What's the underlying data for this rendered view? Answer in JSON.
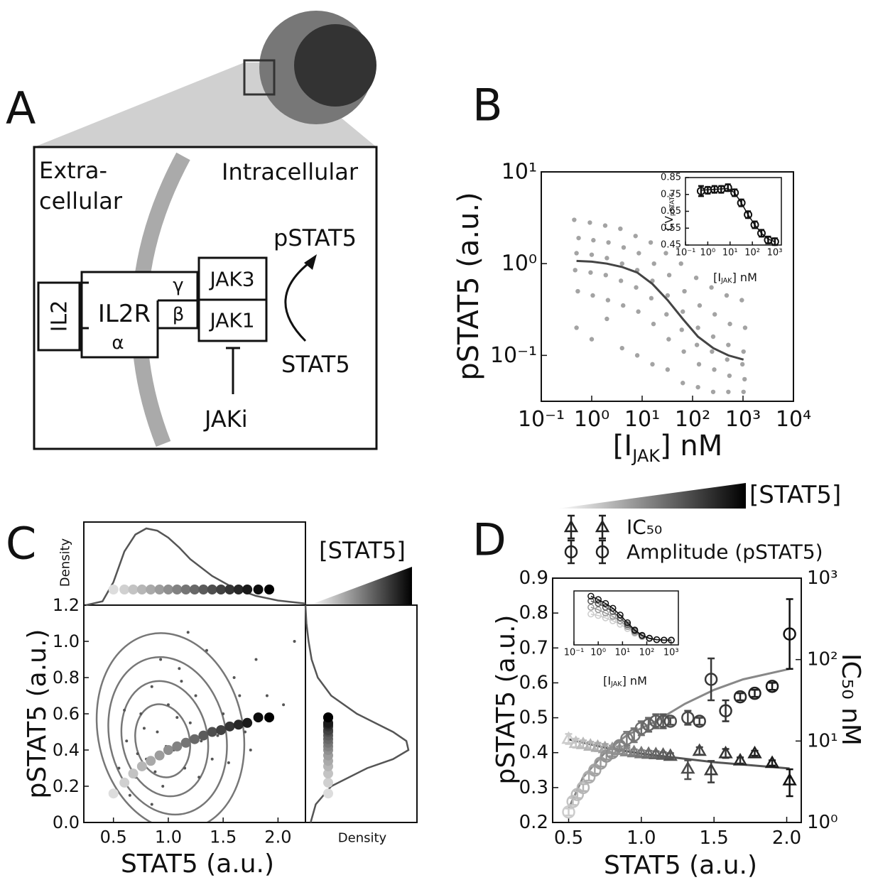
{
  "panel_labels": [
    "A",
    "B",
    "C",
    "D"
  ],
  "diagram": {
    "extracellular": [
      "Extra-",
      "cellular"
    ],
    "intracellular": "Intracellular",
    "il2": "IL2",
    "il2r": "IL2R",
    "gamma": "γ",
    "beta": "β",
    "alpha": "α",
    "jak3": "JAK3",
    "jak1": "JAK1",
    "pstat5": "pSTAT5",
    "stat5": "STAT5",
    "jaki": "JAKi"
  },
  "chart_data": [
    {
      "type": "scatter",
      "xscale": "log",
      "yscale": "log",
      "x_label": {
        "text": "[I",
        "sub": "JAK",
        "tail": "] nM"
      },
      "y_label": {
        "text": "pSTAT5 (a.u.)"
      },
      "xlim": [
        0.1,
        10000
      ],
      "ylim": [
        0.0316,
        10
      ],
      "xticks": [
        {
          "value": 0.1,
          "label": "10⁻¹"
        },
        {
          "value": 1,
          "label": "10⁰"
        },
        {
          "value": 10,
          "label": "10¹"
        },
        {
          "value": 100,
          "label": "10²"
        },
        {
          "value": 1000,
          "label": "10³"
        },
        {
          "value": 10000,
          "label": "10⁴"
        }
      ],
      "yticks": [
        {
          "value": 0.1,
          "label": "10⁻¹"
        },
        {
          "value": 1,
          "label": "10⁰"
        },
        {
          "value": 10,
          "label": "10¹"
        }
      ],
      "points": {
        "color": "#333333",
        "x": [
          0.45,
          0.55,
          0.5,
          0.47,
          0.53,
          0.5,
          0.92,
          1.08,
          1.0,
          0.95,
          1.05,
          1.0,
          1.85,
          2.15,
          2.0,
          1.9,
          2.1,
          2.0,
          3.7,
          4.3,
          4.0,
          3.8,
          4.2,
          4.0,
          7.4,
          8.6,
          8.0,
          7.6,
          8.4,
          8.0,
          14.8,
          17.2,
          16,
          15.2,
          16.8,
          16,
          29.6,
          34.4,
          32,
          30.4,
          33.6,
          32,
          59,
          69,
          64,
          61,
          67,
          64,
          118,
          138,
          128,
          122,
          134,
          128,
          237,
          275,
          256,
          243,
          269,
          256,
          474,
          550,
          512,
          486,
          538,
          512,
          947,
          1100,
          1024,
          973,
          1075,
          1024
        ],
        "values": [
          3.0,
          1.9,
          1.3,
          0.85,
          0.5,
          0.2,
          2.8,
          1.8,
          1.25,
          0.8,
          0.45,
          0.15,
          2.6,
          1.7,
          1.15,
          0.75,
          0.4,
          0.25,
          2.4,
          1.5,
          1.0,
          0.65,
          0.35,
          0.12,
          2.0,
          1.3,
          0.85,
          0.55,
          0.3,
          0.1,
          1.7,
          1.0,
          0.65,
          0.42,
          0.22,
          0.08,
          1.3,
          0.75,
          0.45,
          0.28,
          0.15,
          0.07,
          1.0,
          0.5,
          0.3,
          0.19,
          0.11,
          0.05,
          0.7,
          0.35,
          0.2,
          0.13,
          0.08,
          0.045,
          0.55,
          0.28,
          0.16,
          0.11,
          0.07,
          0.04,
          0.45,
          0.22,
          0.13,
          0.09,
          0.06,
          0.04,
          0.4,
          0.2,
          0.11,
          0.08,
          0.055,
          0.04
        ]
      },
      "fit": {
        "color": "#444444",
        "x": [
          0.5,
          1,
          2,
          4,
          8,
          16,
          32,
          64,
          128,
          256,
          512,
          1024
        ],
        "values": [
          1.07,
          1.05,
          1.0,
          0.92,
          0.8,
          0.6,
          0.4,
          0.25,
          0.16,
          0.12,
          0.1,
          0.09
        ]
      }
    },
    {
      "type": "errorbar",
      "xscale": "log",
      "x_label": {
        "text": "[I",
        "sub": "JAK",
        "tail": "] nM"
      },
      "y_label": {
        "text": "CV",
        "sub": "pSTAT5"
      },
      "xlim": [
        0.1,
        2000
      ],
      "ylim": [
        0.45,
        0.85
      ],
      "xticks": [
        {
          "value": 0.1,
          "label": "10⁻¹"
        },
        {
          "value": 1,
          "label": "10⁰"
        },
        {
          "value": 10,
          "label": "10¹"
        },
        {
          "value": 100,
          "label": "10²"
        },
        {
          "value": 1000,
          "label": "10³"
        }
      ],
      "yticks": [
        0.45,
        0.55,
        0.65,
        0.75,
        0.85
      ],
      "color": "#111111",
      "x": [
        0.5,
        1,
        2,
        4,
        8,
        16,
        32,
        64,
        128,
        256,
        512,
        1024
      ],
      "values": [
        0.77,
        0.775,
        0.78,
        0.78,
        0.79,
        0.76,
        0.7,
        0.63,
        0.57,
        0.52,
        0.48,
        0.47
      ],
      "errors": [
        0.03,
        0.02,
        0.02,
        0.02,
        0.02,
        0.02,
        0.02,
        0.02,
        0.02,
        0.02,
        0.02,
        0.02
      ],
      "fit": {
        "x": [
          0.5,
          2,
          8,
          16,
          32,
          64,
          128,
          256,
          512,
          1024
        ],
        "values": [
          0.775,
          0.78,
          0.785,
          0.76,
          0.7,
          0.63,
          0.57,
          0.52,
          0.485,
          0.47
        ]
      }
    },
    {
      "type": "scatter",
      "x_label": {
        "text": "STAT5 (a.u.)"
      },
      "y_label": {
        "text": "pSTAT5 (a.u.)"
      },
      "xlim": [
        0.23,
        2.25
      ],
      "ylim": [
        0,
        1.2
      ],
      "xticks": [
        0.5,
        {
          "value": 1,
          "label": "1.0"
        },
        1.5,
        {
          "value": 2,
          "label": "2.0"
        }
      ],
      "yticks": [
        {
          "value": 0,
          "label": "0.0"
        },
        0.2,
        0.4,
        0.6,
        0.8,
        {
          "value": 1,
          "label": "1.0"
        },
        1.2
      ],
      "points": {
        "color": "#555555",
        "x": [
          0.55,
          0.62,
          0.7,
          0.75,
          0.8,
          0.85,
          0.9,
          0.95,
          1.0,
          1.05,
          1.1,
          1.15,
          1.2,
          1.25,
          1.3,
          1.35,
          1.4,
          1.5,
          1.6,
          1.7,
          1.8,
          1.9,
          2.05,
          2.15,
          0.65,
          0.72,
          0.78,
          0.88,
          0.93,
          0.98,
          1.08,
          1.18,
          1.28,
          1.45,
          1.55,
          1.65,
          0.6,
          0.85,
          1.12,
          1.75
        ],
        "values": [
          0.3,
          0.45,
          0.25,
          0.6,
          0.35,
          0.75,
          0.5,
          0.2,
          0.65,
          0.4,
          0.85,
          0.3,
          0.55,
          0.7,
          0.45,
          0.95,
          0.35,
          0.6,
          0.8,
          0.5,
          0.9,
          0.7,
          0.65,
          1.0,
          0.15,
          0.38,
          0.52,
          0.28,
          0.9,
          0.42,
          0.58,
          1.05,
          0.25,
          0.48,
          0.33,
          0.7,
          0.62,
          0.1,
          0.78,
          0.4
        ]
      },
      "means": {
        "gradient": [
          "#dddddd",
          "#000000"
        ],
        "x": [
          0.5,
          0.6,
          0.68,
          0.76,
          0.84,
          0.92,
          1.0,
          1.08,
          1.16,
          1.24,
          1.32,
          1.4,
          1.48,
          1.56,
          1.64,
          1.72,
          1.82,
          1.92
        ],
        "values": [
          0.16,
          0.22,
          0.27,
          0.31,
          0.34,
          0.37,
          0.4,
          0.42,
          0.44,
          0.46,
          0.48,
          0.5,
          0.51,
          0.53,
          0.54,
          0.55,
          0.58,
          0.58
        ]
      },
      "gradient_label": "[STAT5]"
    },
    {
      "type": "density",
      "label": "Density",
      "color": "#555555",
      "x": [
        0.25,
        0.4,
        0.5,
        0.6,
        0.7,
        0.8,
        0.9,
        1.0,
        1.1,
        1.2,
        1.4,
        1.6,
        1.8,
        2.0,
        2.25
      ],
      "values": [
        0,
        0.05,
        0.3,
        0.7,
        0.92,
        1.0,
        0.97,
        0.88,
        0.75,
        0.6,
        0.38,
        0.22,
        0.12,
        0.06,
        0.02
      ]
    },
    {
      "type": "density",
      "label": "Density",
      "color": "#555555",
      "y": [
        0,
        0.1,
        0.2,
        0.3,
        0.35,
        0.4,
        0.45,
        0.5,
        0.6,
        0.7,
        0.8,
        0.9,
        1.0,
        1.1,
        1.2
      ],
      "values": [
        0.05,
        0.1,
        0.25,
        0.6,
        0.85,
        1.0,
        0.98,
        0.85,
        0.5,
        0.25,
        0.12,
        0.06,
        0.03,
        0.01,
        0
      ]
    },
    {
      "type": "errorbar",
      "x_label": {
        "text": "STAT5 (a.u.)"
      },
      "y_label": {
        "text": "pSTAT5 (a.u.)"
      },
      "y2_label": {
        "text": "IC₅₀ nM"
      },
      "xlim": [
        0.39,
        2.1
      ],
      "ylim": [
        0.2,
        0.9
      ],
      "y2lim": [
        1,
        1000
      ],
      "y2scale": "log",
      "xticks": [
        0.5,
        {
          "value": 1,
          "label": "1.0"
        },
        1.5,
        {
          "value": 2,
          "label": "2.0"
        }
      ],
      "yticks": [
        0.2,
        0.3,
        0.4,
        0.5,
        0.6,
        0.7,
        0.8,
        0.9
      ],
      "y2ticks": [
        {
          "value": 1,
          "label": "10⁰"
        },
        {
          "value": 10,
          "label": "10¹"
        },
        {
          "value": 100,
          "label": "10²"
        },
        {
          "value": 1000,
          "label": "10³"
        }
      ],
      "gradient_label": "[STAT5]",
      "series": [
        {
          "name": "IC₅₀",
          "marker": "triangle",
          "axis": "y2",
          "gradient": [
            "#cccccc",
            "#111111"
          ],
          "x": [
            0.5,
            0.55,
            0.6,
            0.65,
            0.7,
            0.75,
            0.8,
            0.85,
            0.9,
            0.95,
            1.0,
            1.05,
            1.1,
            1.15,
            1.2,
            1.32,
            1.4,
            1.48,
            1.58,
            1.68,
            1.78,
            1.9,
            2.02
          ],
          "values": [
            10.7,
            9.5,
            9.2,
            8.8,
            8.5,
            8.2,
            8.0,
            7.8,
            7.5,
            7.3,
            7.1,
            7.0,
            6.9,
            6.8,
            6.6,
            4.6,
            7.6,
            4.4,
            7.1,
            5.8,
            7.1,
            5.4,
            3.3
          ],
          "errors": [
            1.5,
            1.2,
            1,
            1,
            1,
            1,
            0.8,
            0.8,
            0.8,
            0.6,
            0.6,
            0.6,
            0.6,
            0.5,
            0.5,
            1.2,
            0.8,
            1.3,
            0.9,
            0.5,
            0.5,
            0.4,
            1.2
          ]
        },
        {
          "name": "Amplitude (pSTAT5)",
          "marker": "circle",
          "gradient": [
            "#cccccc",
            "#111111"
          ],
          "x": [
            0.5,
            0.53,
            0.56,
            0.6,
            0.64,
            0.68,
            0.72,
            0.76,
            0.8,
            0.85,
            0.9,
            0.95,
            1.0,
            1.05,
            1.1,
            1.15,
            1.2,
            1.32,
            1.4,
            1.48,
            1.58,
            1.68,
            1.78,
            1.9,
            2.02
          ],
          "values": [
            0.23,
            0.26,
            0.28,
            0.3,
            0.33,
            0.35,
            0.37,
            0.39,
            0.4,
            0.42,
            0.44,
            0.45,
            0.47,
            0.48,
            0.49,
            0.49,
            0.49,
            0.5,
            0.49,
            0.61,
            0.52,
            0.56,
            0.57,
            0.59,
            0.74
          ],
          "errors": [
            0.01,
            0.01,
            0.01,
            0.01,
            0.01,
            0.01,
            0.01,
            0.01,
            0.01,
            0.01,
            0.02,
            0.02,
            0.02,
            0.02,
            0.02,
            0.02,
            0.01,
            0.02,
            0.01,
            0.06,
            0.03,
            0.01,
            0.01,
            0.01,
            0.1
          ]
        }
      ],
      "fits": [
        {
          "axis": "y2",
          "color": "#555555",
          "x": [
            0.5,
            0.75,
            1.0,
            1.5,
            2.02
          ],
          "values": [
            10.5,
            8.3,
            7.0,
            5.5,
            4.6
          ]
        },
        {
          "color": "#888888",
          "x": [
            0.5,
            0.6,
            0.75,
            0.9,
            1.1,
            1.3,
            1.5,
            1.7,
            2.02
          ],
          "values": [
            0.24,
            0.33,
            0.4,
            0.45,
            0.49,
            0.54,
            0.58,
            0.61,
            0.64
          ]
        }
      ]
    },
    {
      "type": "line",
      "xscale": "log",
      "x_label": {
        "text": "[I",
        "sub": "JAK",
        "tail": "] nM"
      },
      "xlim": [
        0.1,
        2000
      ],
      "xticks": [
        {
          "value": 0.1,
          "label": "10⁻¹"
        },
        {
          "value": 1,
          "label": "10⁰"
        },
        {
          "value": 10,
          "label": "10¹"
        },
        {
          "value": 100,
          "label": "10²"
        },
        {
          "value": 1000,
          "label": "10³"
        }
      ],
      "x": [
        0.5,
        1,
        2,
        4,
        8,
        16,
        32,
        64,
        128,
        256,
        512,
        1024
      ],
      "series": [
        {
          "color": "#111111",
          "values": [
            0.95,
            0.88,
            0.8,
            0.7,
            0.56,
            0.4,
            0.25,
            0.14,
            0.08,
            0.05,
            0.04,
            0.04
          ]
        },
        {
          "color": "#555555",
          "values": [
            0.85,
            0.8,
            0.72,
            0.63,
            0.5,
            0.36,
            0.23,
            0.13,
            0.08,
            0.05,
            0.04,
            0.04
          ]
        },
        {
          "color": "#999999",
          "values": [
            0.72,
            0.67,
            0.6,
            0.53,
            0.44,
            0.32,
            0.2,
            0.12,
            0.07,
            0.05,
            0.04,
            0.04
          ]
        },
        {
          "color": "#cccccc",
          "values": [
            0.58,
            0.55,
            0.5,
            0.44,
            0.37,
            0.28,
            0.18,
            0.11,
            0.07,
            0.05,
            0.04,
            0.03
          ]
        }
      ]
    }
  ]
}
